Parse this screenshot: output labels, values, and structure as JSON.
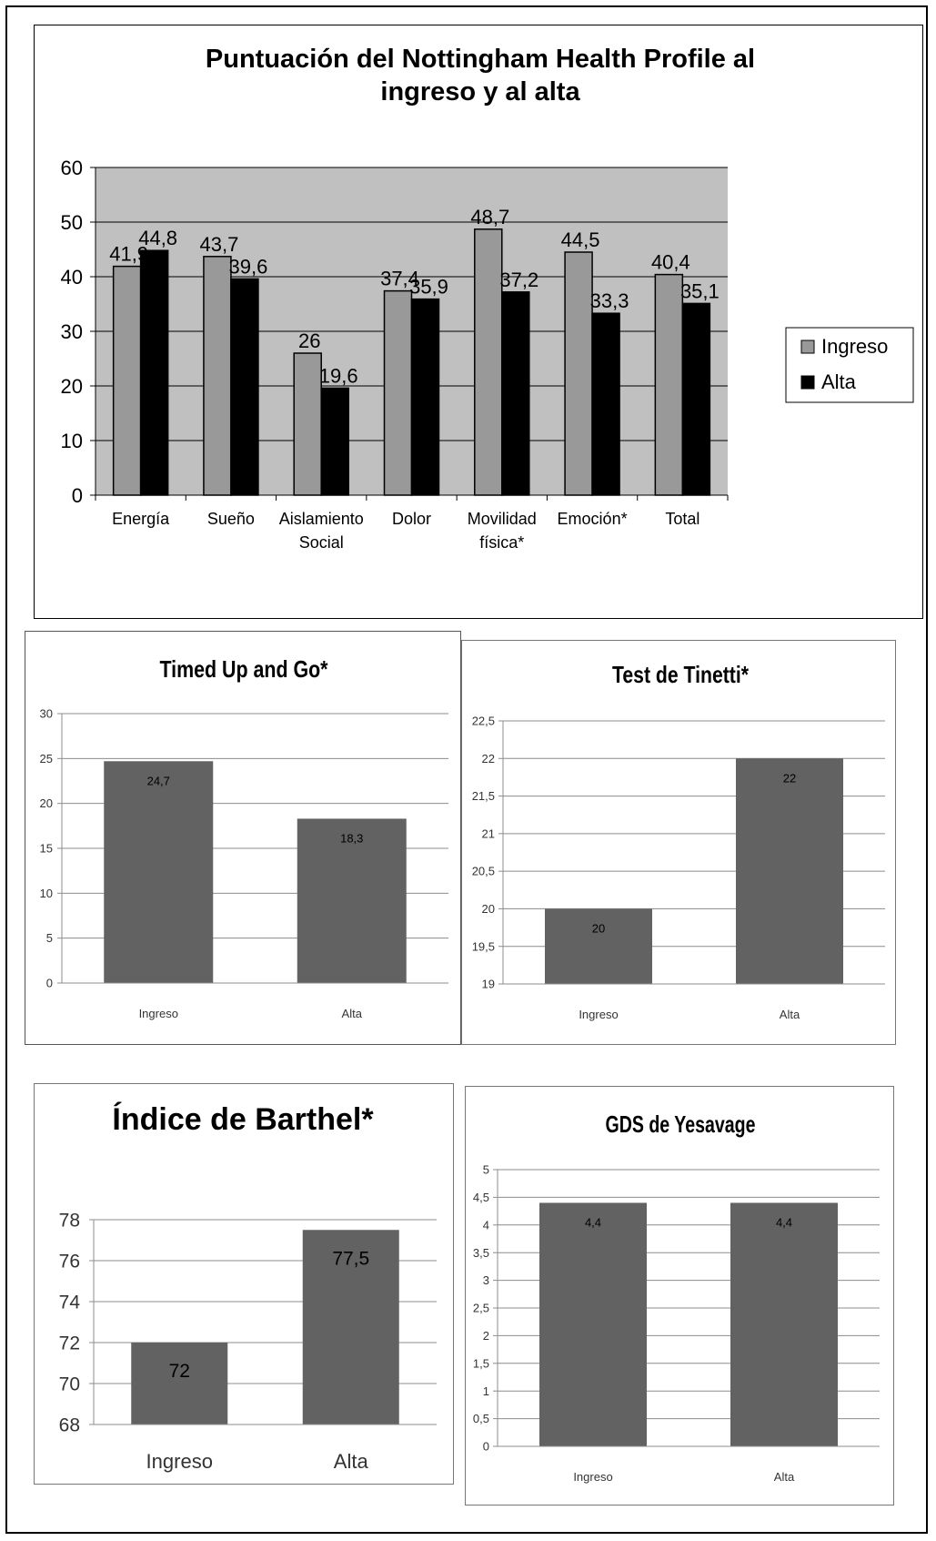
{
  "chart_data": [
    {
      "type": "bar",
      "title": "Puntuación del Nottingham Health Profile al ingreso y al alta",
      "title_lines": [
        "Puntuación del Nottingham Health Profile al",
        "ingreso y al alta"
      ],
      "categories": [
        "Energía",
        "Sueño",
        "Aislamiento Social",
        "Dolor",
        "Movilidad física*",
        "Emoción*",
        "Total"
      ],
      "category_lines": [
        [
          "Energía"
        ],
        [
          "Sueño"
        ],
        [
          "Aislamiento",
          "Social"
        ],
        [
          "Dolor"
        ],
        [
          "Movilidad",
          "física*"
        ],
        [
          "Emoción*"
        ],
        [
          "Total"
        ]
      ],
      "series": [
        {
          "name": "Ingreso",
          "values": [
            41.9,
            43.7,
            26,
            37.4,
            48.7,
            44.5,
            40.4
          ],
          "labels": [
            "41,9",
            "43,7",
            "26",
            "37,4",
            "48,7",
            "44,5",
            "40,4"
          ],
          "color": "#999999"
        },
        {
          "name": "Alta",
          "values": [
            44.8,
            39.6,
            19.6,
            35.9,
            37.2,
            33.3,
            35.1
          ],
          "labels": [
            "44,8",
            "39,6",
            "19,6",
            "35,9",
            "37,2",
            "33,3",
            "35,1"
          ],
          "color": "#000000"
        }
      ],
      "ylim": [
        0,
        60
      ],
      "yticks": [
        "0",
        "10",
        "20",
        "30",
        "40",
        "50",
        "60"
      ],
      "plot_background": "#c0c0c0",
      "grid": true,
      "legend": "right"
    },
    {
      "type": "bar",
      "title": "Timed Up and Go*",
      "categories": [
        "Ingreso",
        "Alta"
      ],
      "values": [
        24.7,
        18.3
      ],
      "labels": [
        "24,7",
        "18,3"
      ],
      "ylim": [
        0,
        30
      ],
      "yticks": [
        "0",
        "5",
        "10",
        "15",
        "20",
        "25",
        "30"
      ],
      "bar_color": "#626262",
      "grid": true
    },
    {
      "type": "bar",
      "title": "Test de Tinetti*",
      "categories": [
        "Ingreso",
        "Alta"
      ],
      "values": [
        20,
        22
      ],
      "labels": [
        "20",
        "22"
      ],
      "ylim": [
        19,
        22.5
      ],
      "yticks": [
        "19",
        "19,5",
        "20",
        "20,5",
        "21",
        "21,5",
        "22",
        "22,5"
      ],
      "bar_color": "#626262",
      "grid": true
    },
    {
      "type": "bar",
      "title": "Índice de Barthel*",
      "categories": [
        "Ingreso",
        "Alta"
      ],
      "values": [
        72,
        77.5
      ],
      "labels": [
        "72",
        "77,5"
      ],
      "ylim": [
        68,
        78
      ],
      "yticks": [
        "68",
        "70",
        "72",
        "74",
        "76",
        "78"
      ],
      "bar_color": "#626262",
      "grid": true
    },
    {
      "type": "bar",
      "title": "GDS de Yesavage",
      "categories": [
        "Ingreso",
        "Alta"
      ],
      "values": [
        4.4,
        4.4
      ],
      "labels": [
        "4,4",
        "4,4"
      ],
      "ylim": [
        0,
        5
      ],
      "yticks": [
        "0",
        "0,5",
        "1",
        "1,5",
        "2",
        "2,5",
        "3",
        "3,5",
        "4",
        "4,5",
        "5"
      ],
      "bar_color": "#626262",
      "grid": true
    }
  ]
}
